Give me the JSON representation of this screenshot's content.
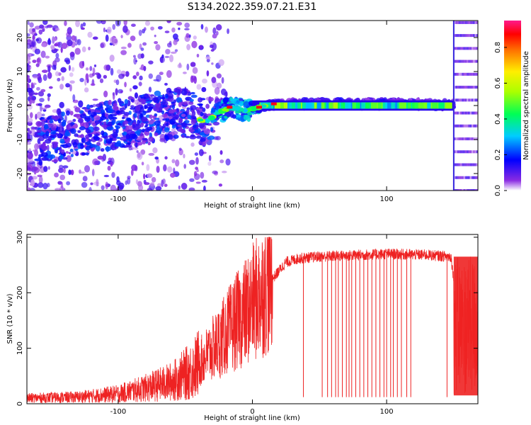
{
  "title": "S134.2022.359.07.21.E31",
  "chart_data": [
    {
      "type": "heatmap",
      "xlabel": "Height of straight line (km)",
      "ylabel": "Frequency (Hz)",
      "xlim": [
        -168,
        168
      ],
      "ylim": [
        -25,
        25
      ],
      "xticks": [
        -100,
        0,
        100
      ],
      "yticks": [
        -20,
        -10,
        0,
        10,
        20
      ],
      "colorbar": {
        "label": "Normalized spectral amplitude",
        "range": [
          0,
          0.95
        ],
        "ticks": [
          "0.0",
          "0.2",
          "0.4",
          "0.6",
          "0.8"
        ]
      },
      "ridge": {
        "x": [
          -150,
          -130,
          -110,
          -90,
          -70,
          -50,
          -35,
          -25,
          -15,
          -5,
          5,
          15,
          40,
          80,
          120,
          150,
          168
        ],
        "freq": [
          -10,
          -8,
          -6,
          -5,
          -3,
          -2,
          -5,
          -2,
          -0.5,
          -1.5,
          -0.5,
          0.5,
          0.5,
          0.5,
          0.5,
          0,
          0
        ]
      }
    },
    {
      "type": "line",
      "xlabel": "Height of straight line (km)",
      "ylabel": "SNR (10 * v/v)",
      "xlim": [
        -168,
        168
      ],
      "ylim": [
        0,
        305
      ],
      "xticks": [
        -100,
        0,
        100
      ],
      "yticks": [
        0,
        100,
        200,
        300
      ],
      "color": "#ee2222",
      "envelope": {
        "x": [
          -168,
          -130,
          -100,
          -80,
          -60,
          -45,
          -35,
          -25,
          -15,
          -5,
          5,
          15,
          25,
          35,
          50,
          80,
          100,
          130,
          148,
          155,
          168
        ],
        "y": [
          10,
          12,
          18,
          28,
          40,
          60,
          85,
          110,
          140,
          165,
          195,
          225,
          255,
          262,
          265,
          268,
          270,
          268,
          265,
          120,
          115
        ]
      },
      "dropouts_x": [
        38,
        52,
        56,
        59,
        62,
        64,
        67,
        70,
        72,
        74,
        77,
        80,
        83,
        86,
        89,
        92,
        95,
        98,
        100,
        103,
        105,
        108,
        111,
        115,
        118,
        145
      ]
    }
  ]
}
